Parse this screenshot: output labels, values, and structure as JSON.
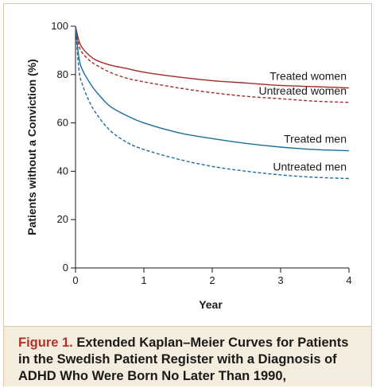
{
  "chart_data": {
    "type": "line",
    "xlabel": "Year",
    "ylabel": "Patients without a Conviction (%)",
    "xlim": [
      0,
      4
    ],
    "ylim": [
      0,
      100
    ],
    "x_ticks": [
      "0",
      "1",
      "2",
      "3",
      "4"
    ],
    "y_ticks": [
      "0",
      "20",
      "40",
      "60",
      "80",
      "100"
    ],
    "grid": false,
    "series": [
      {
        "name": "Treated women",
        "color": "#a32a2a",
        "dash": "solid",
        "x": [
          0,
          0.05,
          0.1,
          0.2,
          0.3,
          0.5,
          0.75,
          1.0,
          1.5,
          2.0,
          2.5,
          3.0,
          3.5,
          4.0
        ],
        "y": [
          100,
          94,
          91,
          88,
          86,
          84,
          82.5,
          81,
          79,
          77.5,
          76.5,
          75.5,
          75,
          74.5
        ]
      },
      {
        "name": "Untreated women",
        "color": "#a32a2a",
        "dash": "dashed",
        "x": [
          0,
          0.05,
          0.1,
          0.2,
          0.3,
          0.5,
          0.75,
          1.0,
          1.5,
          2.0,
          2.5,
          3.0,
          3.5,
          4.0
        ],
        "y": [
          100,
          92,
          89,
          86,
          84,
          81,
          78.5,
          77,
          74.5,
          72.5,
          71,
          70,
          69,
          68.5
        ]
      },
      {
        "name": "Treated men",
        "color": "#1b6e9b",
        "dash": "solid",
        "x": [
          0,
          0.05,
          0.1,
          0.2,
          0.3,
          0.5,
          0.75,
          1.0,
          1.5,
          2.0,
          2.5,
          3.0,
          3.5,
          4.0
        ],
        "y": [
          100,
          87,
          82,
          77,
          73,
          67,
          63,
          60,
          56,
          53.5,
          51.5,
          50,
          49,
          48.5
        ]
      },
      {
        "name": "Untreated men",
        "color": "#1b6e9b",
        "dash": "dashed",
        "x": [
          0,
          0.05,
          0.1,
          0.2,
          0.3,
          0.5,
          0.75,
          1.0,
          1.5,
          2.0,
          2.5,
          3.0,
          3.5,
          4.0
        ],
        "y": [
          100,
          82,
          76,
          69,
          64,
          57,
          52,
          49,
          45,
          42,
          40,
          38.5,
          37.5,
          37
        ]
      }
    ]
  },
  "caption": {
    "label": "Figure 1.",
    "text": "Extended Kaplan–Meier Curves for Patients in the Swedish Patient Register with a Diagnosis of ADHD Who Were Born No Later Than 1990,"
  }
}
